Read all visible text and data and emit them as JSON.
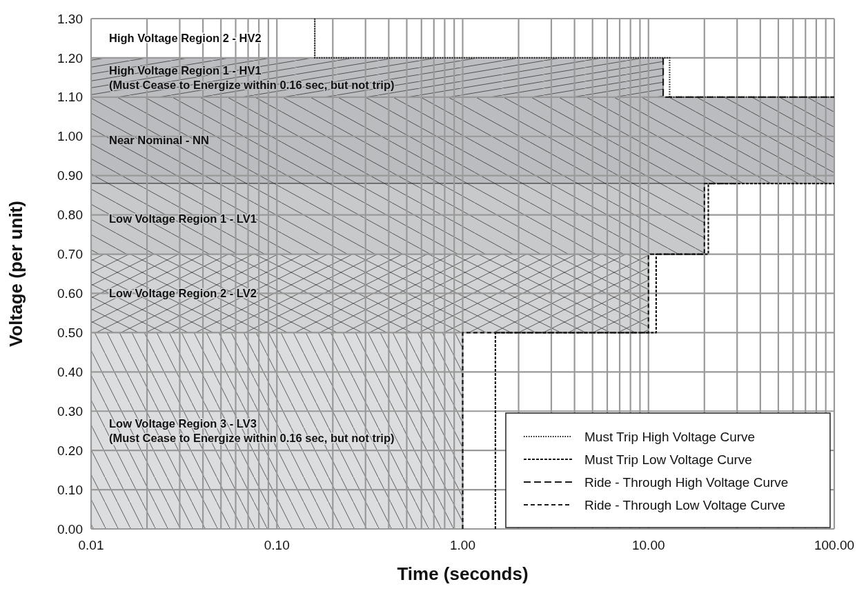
{
  "chart_data": {
    "type": "line",
    "xlabel": "Time (seconds)",
    "ylabel": "Voltage (per unit)",
    "log": "x",
    "grid": true,
    "legend": "bottom right",
    "xlim": [
      0.01,
      100
    ],
    "xticks": [
      {
        "value": 0.01,
        "label": "0.01"
      },
      {
        "value": 0.02,
        "label": null
      },
      {
        "value": 0.03,
        "label": null
      },
      {
        "value": 0.04,
        "label": null
      },
      {
        "value": 0.05,
        "label": null
      },
      {
        "value": 0.06,
        "label": null
      },
      {
        "value": 0.07,
        "label": null
      },
      {
        "value": 0.08,
        "label": null
      },
      {
        "value": 0.09,
        "label": null
      },
      {
        "value": 0.1,
        "label": "0.10"
      },
      {
        "value": 0.2,
        "label": null
      },
      {
        "value": 0.3,
        "label": null
      },
      {
        "value": 0.4,
        "label": null
      },
      {
        "value": 0.5,
        "label": null
      },
      {
        "value": 0.6,
        "label": null
      },
      {
        "value": 0.7,
        "label": null
      },
      {
        "value": 0.8,
        "label": null
      },
      {
        "value": 0.9,
        "label": null
      },
      {
        "value": 1,
        "label": "1.00"
      },
      {
        "value": 2,
        "label": null
      },
      {
        "value": 3,
        "label": null
      },
      {
        "value": 4,
        "label": null
      },
      {
        "value": 5,
        "label": null
      },
      {
        "value": 6,
        "label": null
      },
      {
        "value": 7,
        "label": null
      },
      {
        "value": 8,
        "label": null
      },
      {
        "value": 9,
        "label": null
      },
      {
        "value": 10,
        "label": "10.00"
      },
      {
        "value": 20,
        "label": null
      },
      {
        "value": 30,
        "label": null
      },
      {
        "value": 40,
        "label": null
      },
      {
        "value": 50,
        "label": null
      },
      {
        "value": 60,
        "label": null
      },
      {
        "value": 70,
        "label": null
      },
      {
        "value": 80,
        "label": null
      },
      {
        "value": 90,
        "label": null
      },
      {
        "value": 100,
        "label": "100.00"
      }
    ],
    "ylim": [
      0,
      1.3
    ],
    "yticks": [
      {
        "value": 0,
        "label": "0.00"
      },
      {
        "value": 0.1,
        "label": "0.10"
      },
      {
        "value": 0.2,
        "label": "0.20"
      },
      {
        "value": 0.3,
        "label": "0.30"
      },
      {
        "value": 0.4,
        "label": "0.40"
      },
      {
        "value": 0.5,
        "label": "0.50"
      },
      {
        "value": 0.6,
        "label": "0.60"
      },
      {
        "value": 0.7,
        "label": "0.70"
      },
      {
        "value": 0.8,
        "label": "0.80"
      },
      {
        "value": 0.9,
        "label": "0.90"
      },
      {
        "value": 1,
        "label": "1.00"
      },
      {
        "value": 1.1,
        "label": "1.10"
      },
      {
        "value": 1.2,
        "label": "1.20"
      },
      {
        "value": 1.3,
        "label": "1.30"
      }
    ],
    "series": [
      {
        "type": "area",
        "name": "High Voltage Region 2 - HV2",
        "color": "#ffffff",
        "x": [
          0.01,
          0.16
        ],
        "values": [
          1.3,
          1.3
        ]
      },
      {
        "type": "area",
        "name": "High Voltage Region 1 - HV1\n(Must Cease to Energize within 0.16 sec, but not trip)",
        "color": "#bcbdc0",
        "x": [
          0.01,
          12
        ],
        "values": [
          1.2,
          1.2
        ]
      },
      {
        "type": "area",
        "name": "Near Nominal - NN",
        "color": "#bbbcc0",
        "x": [
          0.01,
          100
        ],
        "values": [
          1.1,
          1.1
        ]
      },
      {
        "type": "area",
        "name": "Low Voltage Region 1 - LV1",
        "color": "#c8c9cb",
        "x": [
          0.01,
          20
        ],
        "values": [
          0.88,
          0.88
        ]
      },
      {
        "type": "area",
        "name": "Low Voltage Region 2 - LV2",
        "color": "#d2d3d5",
        "x": [
          0.01,
          10
        ],
        "values": [
          0.7,
          0.7
        ]
      },
      {
        "type": "area",
        "name": "Low Voltage Region 3 - LV3\n(Must Cease to Energize within 0.16 sec, but not trip)",
        "color": "#dcdddf",
        "x": [
          0.01,
          1
        ],
        "values": [
          0.5,
          0.5
        ]
      },
      {
        "name": "Must Trip High Voltage Curve",
        "color": "#1a1a1a",
        "line_style": "dotted",
        "x": [
          0.16,
          0.16,
          13,
          13,
          100
        ],
        "values": [
          1.3,
          1.2,
          1.2,
          1.1,
          1.1
        ]
      },
      {
        "name": "Must Trip Low Voltage Curve",
        "color": "#1a1a1a",
        "line_style": "dashed",
        "x": [
          1.5,
          1.5,
          11,
          11,
          21,
          21,
          100
        ],
        "values": [
          0,
          0.5,
          0.5,
          0.7,
          0.7,
          0.88,
          0.88
        ]
      },
      {
        "name": "Ride - Through High Voltage Curve",
        "color": "#1a1a1a",
        "line_style": "dashed",
        "x": [
          12,
          12,
          100
        ],
        "values": [
          1.2,
          1.1,
          1.1
        ]
      },
      {
        "name": "Ride - Through Low Voltage Curve",
        "color": "#1a1a1a",
        "line_style": "dashed",
        "x": [
          1,
          1,
          10,
          10,
          20,
          20,
          30
        ],
        "values": [
          0,
          0.5,
          0.5,
          0.7,
          0.7,
          0.88,
          0.88
        ]
      }
    ]
  }
}
